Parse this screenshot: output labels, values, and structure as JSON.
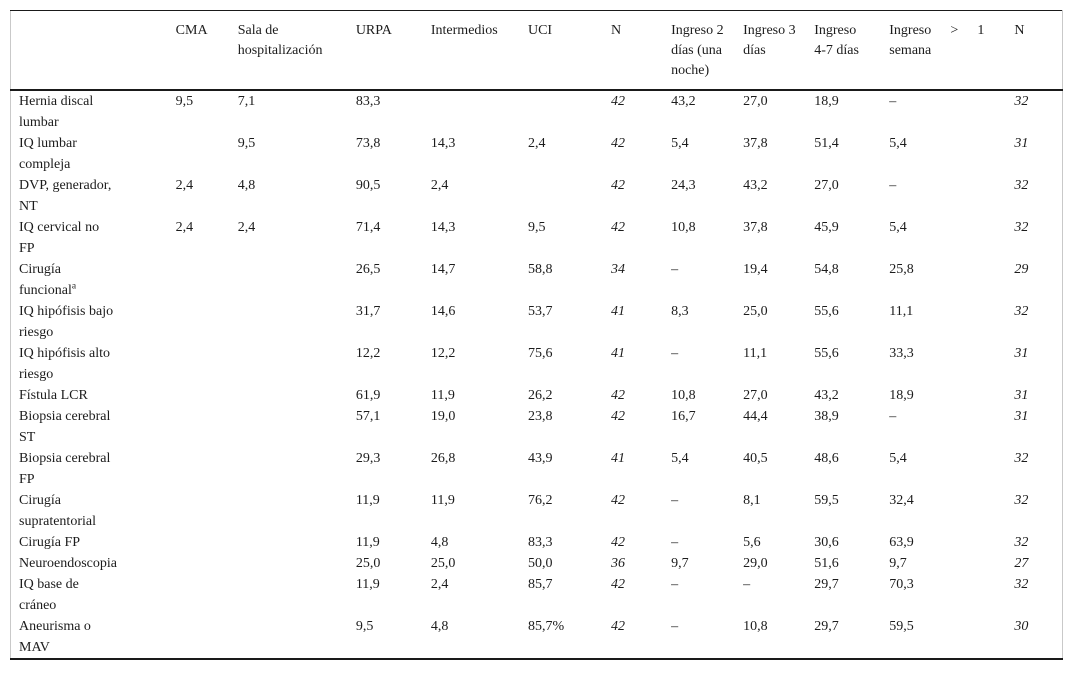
{
  "table": {
    "columns": [
      {
        "key": "row-label",
        "label": ""
      },
      {
        "key": "cma",
        "label": "CMA"
      },
      {
        "key": "sala-de-hospitalizacion",
        "label": "Sala de hospitalización"
      },
      {
        "key": "urpa",
        "label": "URPA"
      },
      {
        "key": "intermedios",
        "label": "Intermedios"
      },
      {
        "key": "uci",
        "label": "UCI"
      },
      {
        "key": "n-destino",
        "label": "N"
      },
      {
        "key": "ingreso-2-dias",
        "label": "Ingreso 2 días (una noche)"
      },
      {
        "key": "ingreso-3-dias",
        "label": "Ingreso 3 días"
      },
      {
        "key": "ingreso-4-7-dias",
        "label": "Ingreso 4-7 días"
      },
      {
        "key": "ingreso-mas-1-semana",
        "label": "Ingreso > 1 semana"
      },
      {
        "key": "n-ingreso",
        "label": "N"
      }
    ],
    "italic_value_cols": [
      5,
      10
    ],
    "rows": [
      {
        "label": "Hernia discal lumbar",
        "values": [
          "9,5",
          "7,1",
          "83,3",
          "",
          "",
          "42",
          "43,2",
          "27,0",
          "18,9",
          "–",
          "32"
        ]
      },
      {
        "label": "IQ lumbar compleja",
        "values": [
          "",
          "9,5",
          "73,8",
          "14,3",
          "2,4",
          "42",
          "5,4",
          "37,8",
          "51,4",
          "5,4",
          "31"
        ]
      },
      {
        "label": "DVP, generador, NT",
        "values": [
          "2,4",
          "4,8",
          "90,5",
          "2,4",
          "",
          "42",
          "24,3",
          "43,2",
          "27,0",
          "–",
          "32"
        ]
      },
      {
        "label": "IQ cervical no FP",
        "values": [
          "2,4",
          "2,4",
          "71,4",
          "14,3",
          "9,5",
          "42",
          "10,8",
          "37,8",
          "45,9",
          "5,4",
          "32"
        ]
      },
      {
        "label": "Cirugía funcional",
        "sup": "a",
        "values": [
          "",
          "",
          "26,5",
          "14,7",
          "58,8",
          "34",
          "–",
          "19,4",
          "54,8",
          "25,8",
          "29"
        ]
      },
      {
        "label": "IQ hipófisis bajo riesgo",
        "values": [
          "",
          "",
          "31,7",
          "14,6",
          "53,7",
          "41",
          "8,3",
          "25,0",
          "55,6",
          "11,1",
          "32"
        ]
      },
      {
        "label": "IQ hipófisis alto riesgo",
        "values": [
          "",
          "",
          "12,2",
          "12,2",
          "75,6",
          "41",
          "–",
          "11,1",
          "55,6",
          "33,3",
          "31"
        ]
      },
      {
        "label": "Fístula LCR",
        "values": [
          "",
          "",
          "61,9",
          "11,9",
          "26,2",
          "42",
          "10,8",
          "27,0",
          "43,2",
          "18,9",
          "31"
        ]
      },
      {
        "label": "Biopsia cerebral ST",
        "values": [
          "",
          "",
          "57,1",
          "19,0",
          "23,8",
          "42",
          "16,7",
          "44,4",
          "38,9",
          "–",
          "31"
        ]
      },
      {
        "label": "Biopsia cerebral FP",
        "values": [
          "",
          "",
          "29,3",
          "26,8",
          "43,9",
          "41",
          "5,4",
          "40,5",
          "48,6",
          "5,4",
          "32"
        ]
      },
      {
        "label": "Cirugía supratentorial",
        "values": [
          "",
          "",
          "11,9",
          "11,9",
          "76,2",
          "42",
          "–",
          "8,1",
          "59,5",
          "32,4",
          "32"
        ]
      },
      {
        "label": "Cirugía FP",
        "values": [
          "",
          "",
          "11,9",
          "4,8",
          "83,3",
          "42",
          "–",
          "5,6",
          "30,6",
          "63,9",
          "32"
        ]
      },
      {
        "label": "Neuroendoscopia",
        "values": [
          "",
          "",
          "25,0",
          "25,0",
          "50,0",
          "36",
          "9,7",
          "29,0",
          "51,6",
          "9,7",
          "27"
        ]
      },
      {
        "label": "IQ base de cráneo",
        "values": [
          "",
          "",
          "11,9",
          "2,4",
          "85,7",
          "42",
          "–",
          "–",
          "29,7",
          "70,3",
          "32"
        ]
      },
      {
        "label": "Aneurisma o MAV",
        "values": [
          "",
          "",
          "9,5",
          "4,8",
          "85,7%",
          "42",
          "–",
          "10,8",
          "29,7",
          "59,5",
          "30"
        ]
      }
    ]
  }
}
